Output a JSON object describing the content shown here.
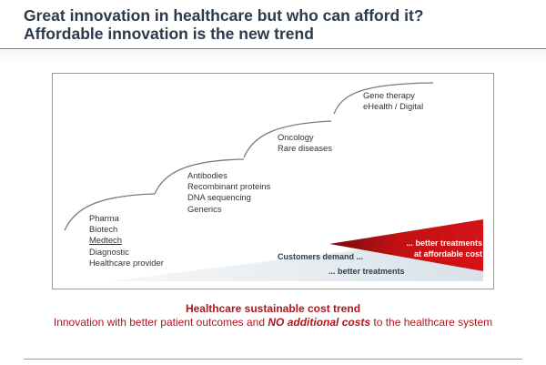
{
  "slide": {
    "title_line1": "Great innovation in healthcare but who can afford it?",
    "title_line2": "Affordable innovation is the new trend"
  },
  "steps": [
    {
      "items": [
        "Pharma",
        "Biotech",
        "Medtech",
        "Diagnostic",
        "Healthcare provider"
      ]
    },
    {
      "items": [
        "Antibodies",
        "Recombinant proteins",
        "DNA sequencing",
        "Generics"
      ]
    },
    {
      "items": [
        "Oncology",
        "Rare diseases"
      ]
    },
    {
      "items": [
        "Gene therapy",
        "eHealth / Digital"
      ]
    }
  ],
  "wedge": {
    "customers_demand": "Customers demand ...",
    "better_treatments": "... better treatments",
    "affordable_line1": "... better treatments",
    "affordable_line2": "at affordable cost",
    "colors": {
      "grey": "#dde5ea",
      "red": "#c00f12"
    }
  },
  "footer": {
    "heading": "Healthcare sustainable cost trend",
    "text_before": "Innovation with better patient outcomes and ",
    "text_emphasis": "NO additional costs",
    "text_after": " to the healthcare system"
  }
}
